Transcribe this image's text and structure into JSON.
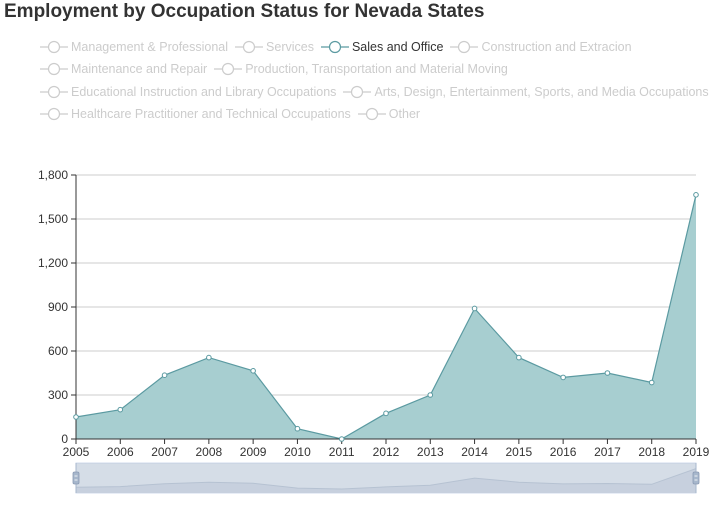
{
  "title": "Employment by Occupation Status for Nevada States",
  "legend": {
    "rows": [
      [
        "Management & Professional",
        "Services",
        "Sales and Office",
        "Construction and Extracion"
      ],
      [
        "Maintenance and Repair",
        "Production, Transportation and Material Moving"
      ],
      [
        "Educational Instruction and Library Occupations",
        "Arts, Design, Entertainment, Sports, and Media Occupations"
      ],
      [
        "Healthcare Practitioner and Technical Occupations",
        "Other"
      ]
    ],
    "active": "Sales and Office"
  },
  "colors": {
    "area": "#a7ced0",
    "line": "#5b9aa1",
    "inactive": "#cccccc",
    "axis": "#333333",
    "grid": "#cccccc"
  },
  "chart_data": {
    "type": "area",
    "x": [
      "2005",
      "2006",
      "2007",
      "2008",
      "2009",
      "2010",
      "2011",
      "2012",
      "2013",
      "2014",
      "2015",
      "2016",
      "2017",
      "2018",
      "2019"
    ],
    "series": [
      {
        "name": "Sales and Office",
        "values": [
          150,
          200,
          435,
          555,
          465,
          70,
          0,
          175,
          300,
          890,
          555,
          420,
          450,
          385,
          1665
        ]
      }
    ],
    "ylim": [
      0,
      1800
    ],
    "yticks": [
      "0",
      "300",
      "600",
      "900",
      "1,200",
      "1,500",
      "1,800"
    ],
    "grid": true,
    "data_zoom": true
  }
}
